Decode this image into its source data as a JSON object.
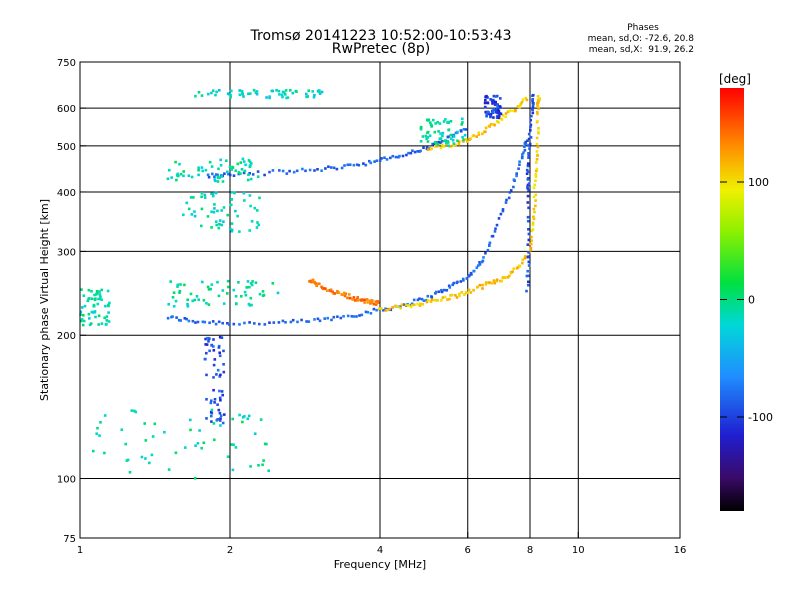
{
  "title": "Tromsø 20141223 10:52:00-10:53:43",
  "subtitle": "RwPretec (8p)",
  "stats": {
    "heading": "Phases",
    "line_o": "mean, sd,O: -72.6, 20.8",
    "line_x": "mean, sd,X:  91.9, 26.2"
  },
  "xlabel": "Frequency [MHz]",
  "ylabel": "Stationary phase Virtual Height [km]",
  "colorbar": {
    "label": "[deg]",
    "range": [
      -180,
      180
    ],
    "ticks": [
      100,
      0,
      -100
    ],
    "tick_labels": [
      "100",
      "0",
      "-100"
    ]
  },
  "chart_data": {
    "type": "scatter",
    "x_scale": "log",
    "y_scale": "log",
    "xlim": [
      1,
      16
    ],
    "ylim": [
      75,
      750
    ],
    "xticks": [
      1,
      2,
      4,
      6,
      8,
      10,
      16
    ],
    "xtick_labels": [
      "1",
      "2",
      "4",
      "6",
      "8",
      "10",
      "16"
    ],
    "yticks": [
      75,
      100,
      200,
      300,
      400,
      500,
      600,
      750
    ],
    "ytick_labels": [
      "75",
      "100",
      "200",
      "300",
      "400",
      "500",
      "600",
      "750"
    ],
    "grid_x": [
      2,
      4,
      6,
      8,
      10
    ],
    "grid_y": [
      100,
      200,
      300,
      400,
      500,
      600
    ],
    "color_encoding": "phase [deg]",
    "traces": [
      {
        "desc": "O-mode lower F trace",
        "phase": -85,
        "points": [
          [
            1.5,
            218
          ],
          [
            1.7,
            214
          ],
          [
            2.0,
            212
          ],
          [
            2.5,
            212
          ],
          [
            3.0,
            215
          ],
          [
            3.5,
            220
          ],
          [
            4.0,
            226
          ],
          [
            4.5,
            232
          ],
          [
            5.0,
            240
          ],
          [
            5.5,
            252
          ],
          [
            6.0,
            265
          ],
          [
            6.4,
            285
          ],
          [
            6.8,
            330
          ],
          [
            7.3,
            400
          ],
          [
            7.7,
            470
          ],
          [
            7.9,
            520
          ]
        ]
      },
      {
        "desc": "X-mode lower F trace",
        "phase": 110,
        "points": [
          [
            4.0,
            226
          ],
          [
            4.5,
            230
          ],
          [
            5.0,
            235
          ],
          [
            5.5,
            240
          ],
          [
            6.0,
            246
          ],
          [
            6.5,
            255
          ],
          [
            7.0,
            262
          ],
          [
            7.5,
            275
          ],
          [
            8.0,
            300
          ],
          [
            8.15,
            350
          ],
          [
            8.2,
            420
          ],
          [
            8.3,
            500
          ],
          [
            8.3,
            600
          ],
          [
            8.35,
            640
          ]
        ]
      },
      {
        "desc": "O-mode second hop trace",
        "phase": -85,
        "points": [
          [
            1.8,
            432
          ],
          [
            2.0,
            435
          ],
          [
            2.5,
            440
          ],
          [
            3.0,
            445
          ],
          [
            3.5,
            455
          ],
          [
            4.0,
            465
          ],
          [
            4.5,
            480
          ],
          [
            5.0,
            495
          ],
          [
            5.5,
            520
          ],
          [
            6.0,
            545
          ]
        ]
      },
      {
        "desc": "X-mode second hop trace",
        "phase": 110,
        "points": [
          [
            5.0,
            492
          ],
          [
            5.5,
            500
          ],
          [
            6.0,
            515
          ],
          [
            6.5,
            540
          ],
          [
            7.0,
            570
          ],
          [
            7.5,
            600
          ],
          [
            7.9,
            630
          ]
        ]
      },
      {
        "desc": "O-mode near 8 MHz cusp",
        "phase": -95,
        "points": [
          [
            7.9,
            250
          ],
          [
            7.95,
            300
          ],
          [
            7.95,
            400
          ],
          [
            7.9,
            450
          ],
          [
            8.0,
            520
          ],
          [
            8.1,
            600
          ],
          [
            8.1,
            640
          ]
        ]
      },
      {
        "desc": "Oblique echoes 3 MHz",
        "phase": 140,
        "points": [
          [
            2.9,
            262
          ],
          [
            3.0,
            255
          ],
          [
            3.2,
            248
          ],
          [
            3.4,
            243
          ],
          [
            3.6,
            238
          ],
          [
            3.8,
            235
          ],
          [
            4.0,
            233
          ]
        ]
      }
    ],
    "clusters": [
      {
        "desc": "Low frequency cyan echoes",
        "phase": -10,
        "x": [
          1.0,
          1.15
        ],
        "y": [
          210,
          250
        ]
      },
      {
        "desc": "Spread at 1.5-2.3 MHz upper",
        "phase": -10,
        "x": [
          1.5,
          2.3
        ],
        "y": [
          420,
          470
        ]
      },
      {
        "desc": "Spread at 1.5-2.3 MHz mid",
        "phase": -10,
        "x": [
          1.5,
          2.5
        ],
        "y": [
          230,
          260
        ]
      },
      {
        "desc": "Scattered 1.8-2 MHz",
        "phase": -95,
        "x": [
          1.78,
          1.95
        ],
        "y": [
          130,
          200
        ]
      },
      {
        "desc": "Cyan scattered lower",
        "phase": -10,
        "x": [
          1.0,
          2.4
        ],
        "y": [
          100,
          140
        ]
      },
      {
        "desc": "Upper blue 640 km",
        "phase": -20,
        "x": [
          1.7,
          3.1
        ],
        "y": [
          630,
          655
        ]
      },
      {
        "desc": "Band 330-400 km",
        "phase": -15,
        "x": [
          1.6,
          2.3
        ],
        "y": [
          330,
          400
        ]
      },
      {
        "desc": "Blue 6.5-7 MHz top",
        "phase": -100,
        "x": [
          6.5,
          7.0
        ],
        "y": [
          570,
          640
        ]
      },
      {
        "desc": "Scattered 500-560 cyan",
        "phase": -10,
        "x": [
          4.8,
          6.0
        ],
        "y": [
          500,
          570
        ]
      }
    ]
  }
}
